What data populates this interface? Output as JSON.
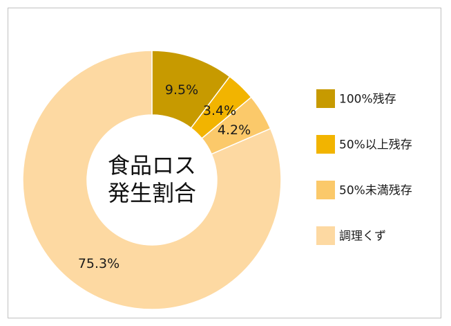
{
  "chart_data": {
    "type": "pie",
    "donut": true,
    "title": "",
    "center_label": [
      "食品ロス",
      "発生割合"
    ],
    "categories": [
      "100%残存",
      "50%以上残存",
      "50%未満残存",
      "調理くず"
    ],
    "values": [
      9.5,
      3.4,
      4.2,
      75.3
    ],
    "labels": [
      "9.5%",
      "3.4%",
      "4.2%",
      "75.3%"
    ],
    "colors": [
      "#c79a00",
      "#f2b400",
      "#fbc96a",
      "#fdd9a2"
    ],
    "legend": "right"
  }
}
